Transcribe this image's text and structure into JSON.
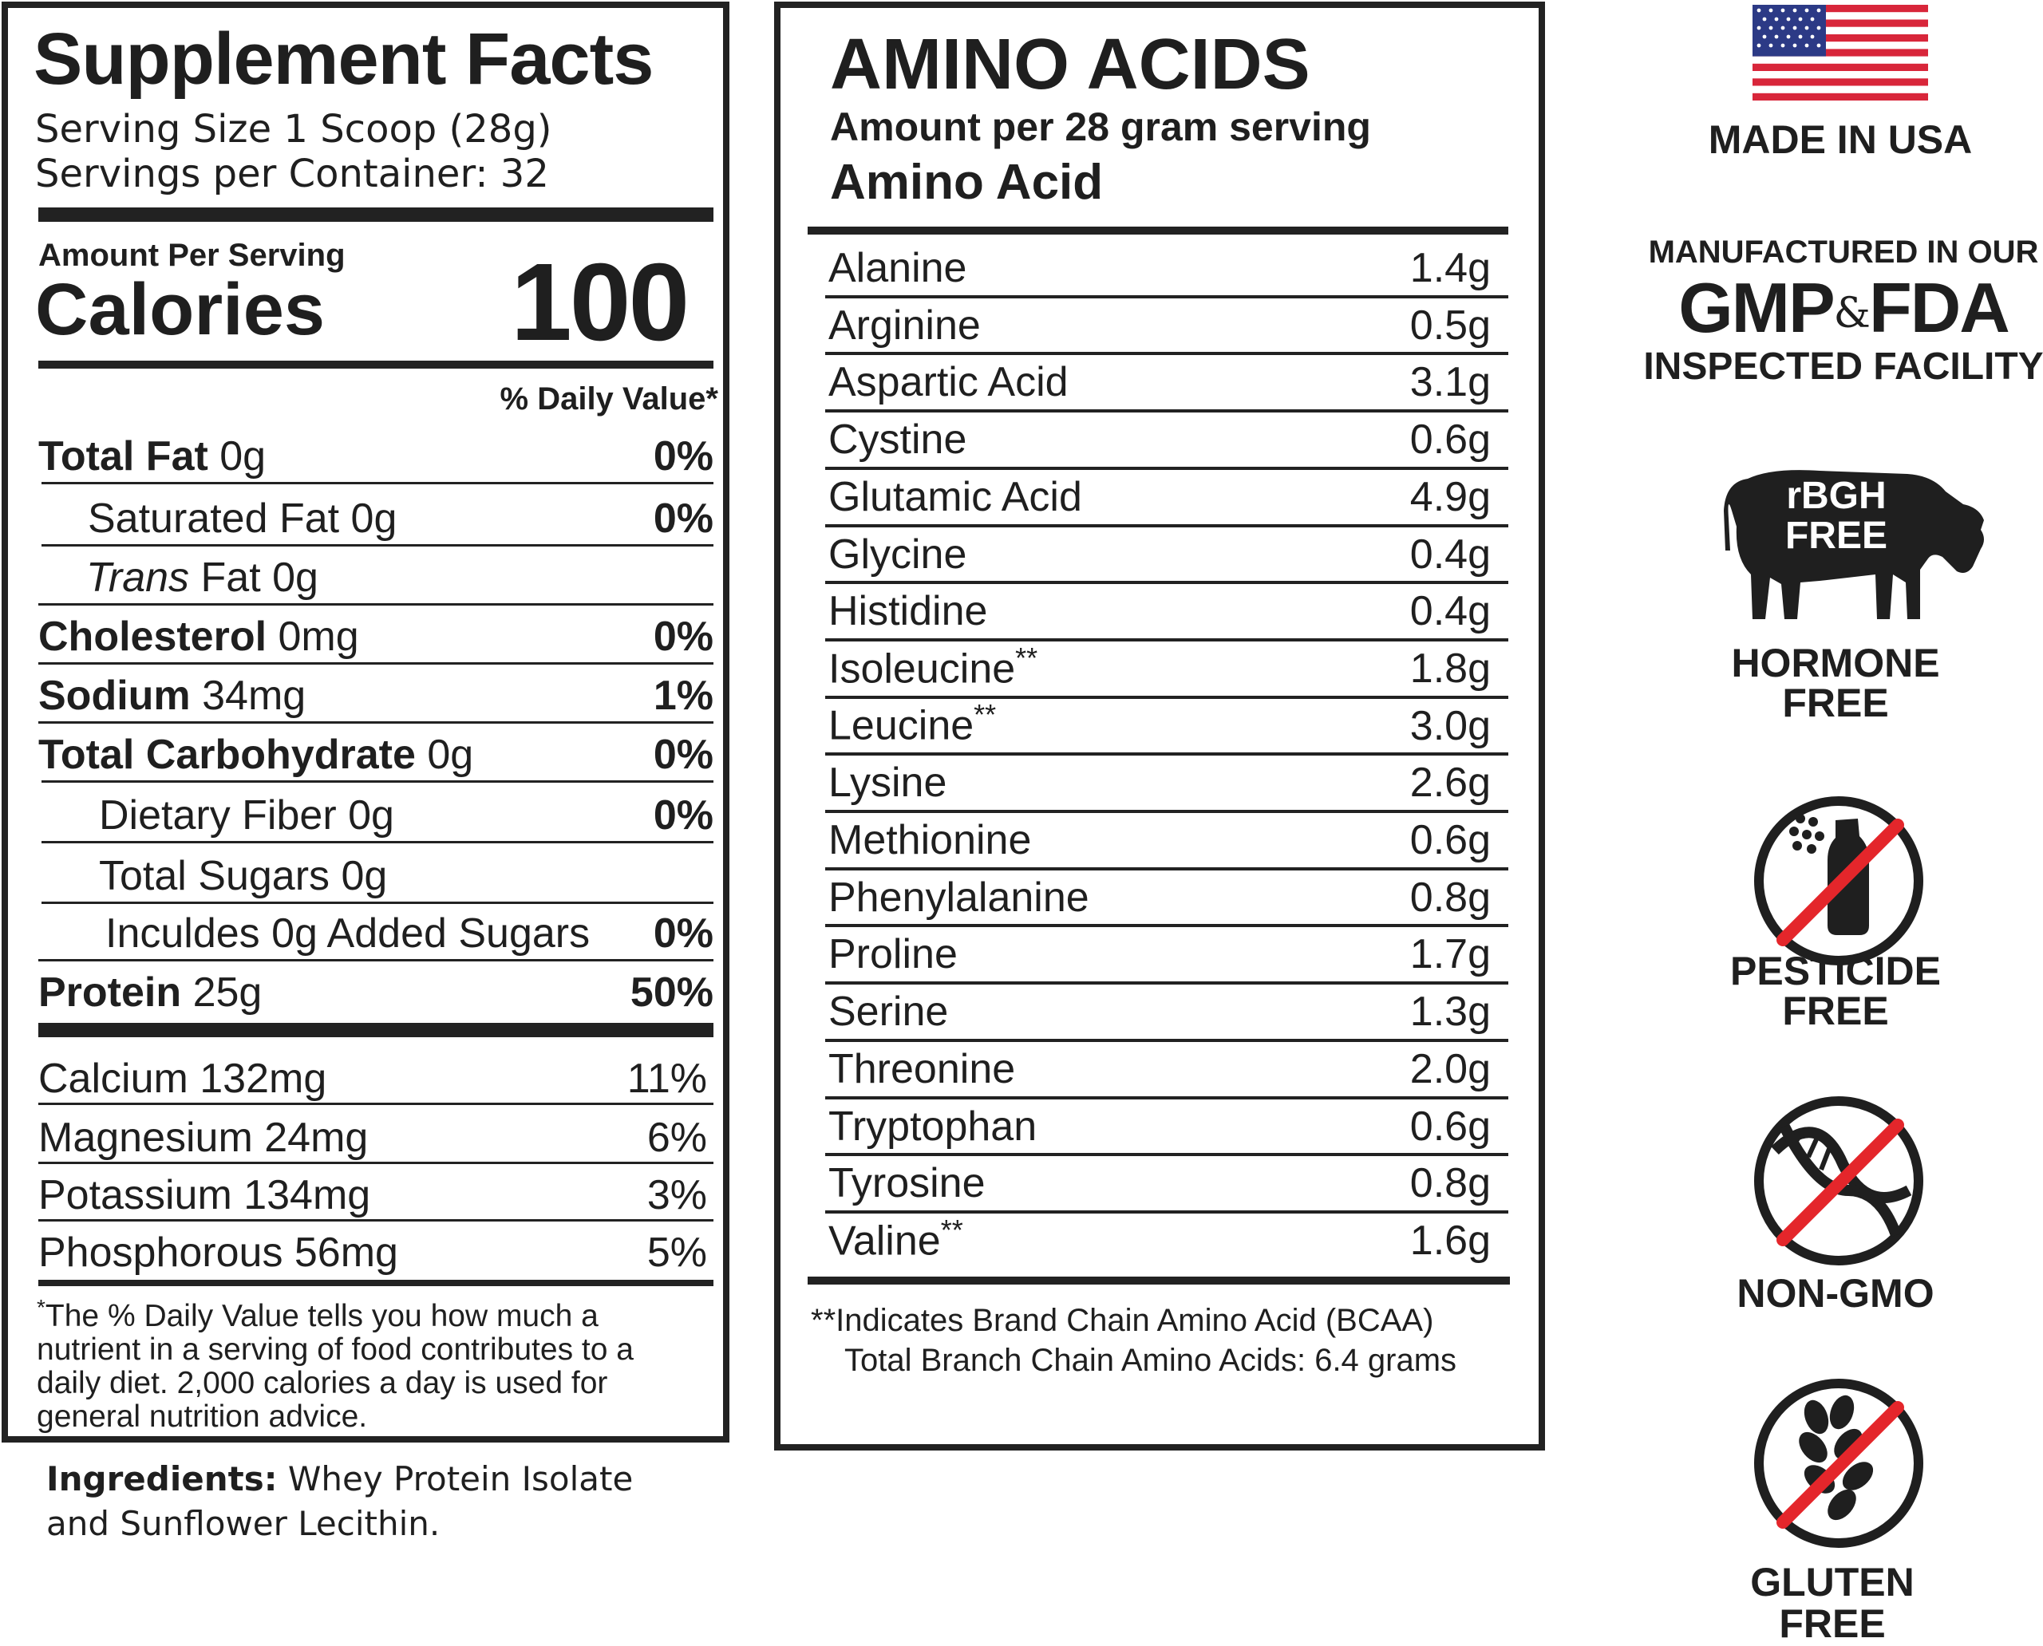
{
  "supplement_facts": {
    "title": "Supplement Facts",
    "serving_size": "Serving Size 1 Scoop (28g)",
    "servings_per_container": "Servings per Container: 32",
    "amount_per_serving": "Amount Per Serving",
    "calories_label": "Calories",
    "calories_value": "100",
    "daily_value_header": "% Daily Value*",
    "rows": [
      {
        "bold": "Total Fat",
        "rest": " 0g",
        "italic": "",
        "pct": "0%"
      },
      {
        "bold": "",
        "rest": "Saturated Fat 0g",
        "italic": "",
        "pct": "0%"
      },
      {
        "bold": "",
        "rest": " Fat 0g",
        "italic": "Trans",
        "pct": ""
      },
      {
        "bold": "Cholesterol",
        "rest": " 0mg",
        "italic": "",
        "pct": "0%"
      },
      {
        "bold": "Sodium",
        "rest": " 34mg",
        "italic": "",
        "pct": "1%"
      },
      {
        "bold": "Total Carbohydrate",
        "rest": " 0g",
        "italic": "",
        "pct": "0%"
      },
      {
        "bold": "",
        "rest": "Dietary Fiber 0g",
        "italic": "",
        "pct": "0%"
      },
      {
        "bold": "",
        "rest": "Total Sugars 0g",
        "italic": "",
        "pct": ""
      },
      {
        "bold": "",
        "rest": "Inculdes 0g Added Sugars",
        "italic": "",
        "pct": "0%"
      },
      {
        "bold": "Protein",
        "rest": " 25g",
        "italic": "",
        "pct": "50%"
      }
    ],
    "minerals": [
      {
        "label": "Calcium 132mg",
        "pct": "11%"
      },
      {
        "label": "Magnesium 24mg",
        "pct": "6%"
      },
      {
        "label": "Potassium 134mg",
        "pct": "3%"
      },
      {
        "label": "Phosphorous 56mg",
        "pct": "5%"
      }
    ],
    "footnote_mark": "*",
    "footnote": "The % Daily Value tells you how much a nutrient in a serving of food contributes to a daily diet. 2,000 calories a day is used for general nutrition advice.",
    "ingredients_label": "Ingredients:",
    "ingredients": " Whey Protein Isolate and Sunflower Lecithin."
  },
  "amino_acids": {
    "title": "AMINO ACIDS",
    "subtitle": "Amount per 28 gram serving",
    "column_header": "Amino Acid",
    "rows": [
      {
        "name": "Alanine",
        "mark": "",
        "value": "1.4g"
      },
      {
        "name": "Arginine",
        "mark": "",
        "value": "0.5g"
      },
      {
        "name": "Aspartic Acid",
        "mark": "",
        "value": "3.1g"
      },
      {
        "name": "Cystine",
        "mark": "",
        "value": "0.6g"
      },
      {
        "name": "Glutamic Acid",
        "mark": "",
        "value": "4.9g"
      },
      {
        "name": "Glycine",
        "mark": "",
        "value": "0.4g"
      },
      {
        "name": "Histidine",
        "mark": "",
        "value": "0.4g"
      },
      {
        "name": "Isoleucine",
        "mark": "**",
        "value": "1.8g"
      },
      {
        "name": "Leucine",
        "mark": "**",
        "value": "3.0g"
      },
      {
        "name": "Lysine",
        "mark": "",
        "value": "2.6g"
      },
      {
        "name": "Methionine",
        "mark": "",
        "value": "0.6g"
      },
      {
        "name": "Phenylalanine",
        "mark": "",
        "value": "0.8g"
      },
      {
        "name": "Proline",
        "mark": "",
        "value": "1.7g"
      },
      {
        "name": "Serine",
        "mark": "",
        "value": "1.3g"
      },
      {
        "name": "Threonine",
        "mark": "",
        "value": "2.0g"
      },
      {
        "name": "Tryptophan",
        "mark": "",
        "value": "0.6g"
      },
      {
        "name": "Tyrosine",
        "mark": "",
        "value": "0.8g"
      },
      {
        "name": "Valine",
        "mark": "**",
        "value": "1.6g"
      }
    ],
    "note_line1": "**Indicates Brand Chain Amino Acid (BCAA)",
    "note_line2": "Total Branch Chain Amino Acids: 6.4 grams"
  },
  "badges": {
    "made_in_usa": "MADE IN USA",
    "mfg_line1": "MANUFACTURED IN OUR",
    "mfg_gmp": "GMP",
    "mfg_amp": "&",
    "mfg_fda": "FDA",
    "mfg_line3": "INSPECTED FACILITY",
    "rbgh_line1": "rBGH",
    "rbgh_line2": "FREE",
    "hormone_line1": "HORMONE",
    "hormone_line2": "FREE",
    "pesticide_line1": "PESTICIDE",
    "pesticide_line2": "FREE",
    "nongmo": "NON-GMO",
    "gluten_line1": "GLUTEN",
    "gluten_line2": "FREE"
  },
  "colors": {
    "ink": "#1f1f1f",
    "prohibit_red": "#e4262b",
    "flag_red": "#d8263a",
    "flag_blue": "#2c3a86"
  }
}
